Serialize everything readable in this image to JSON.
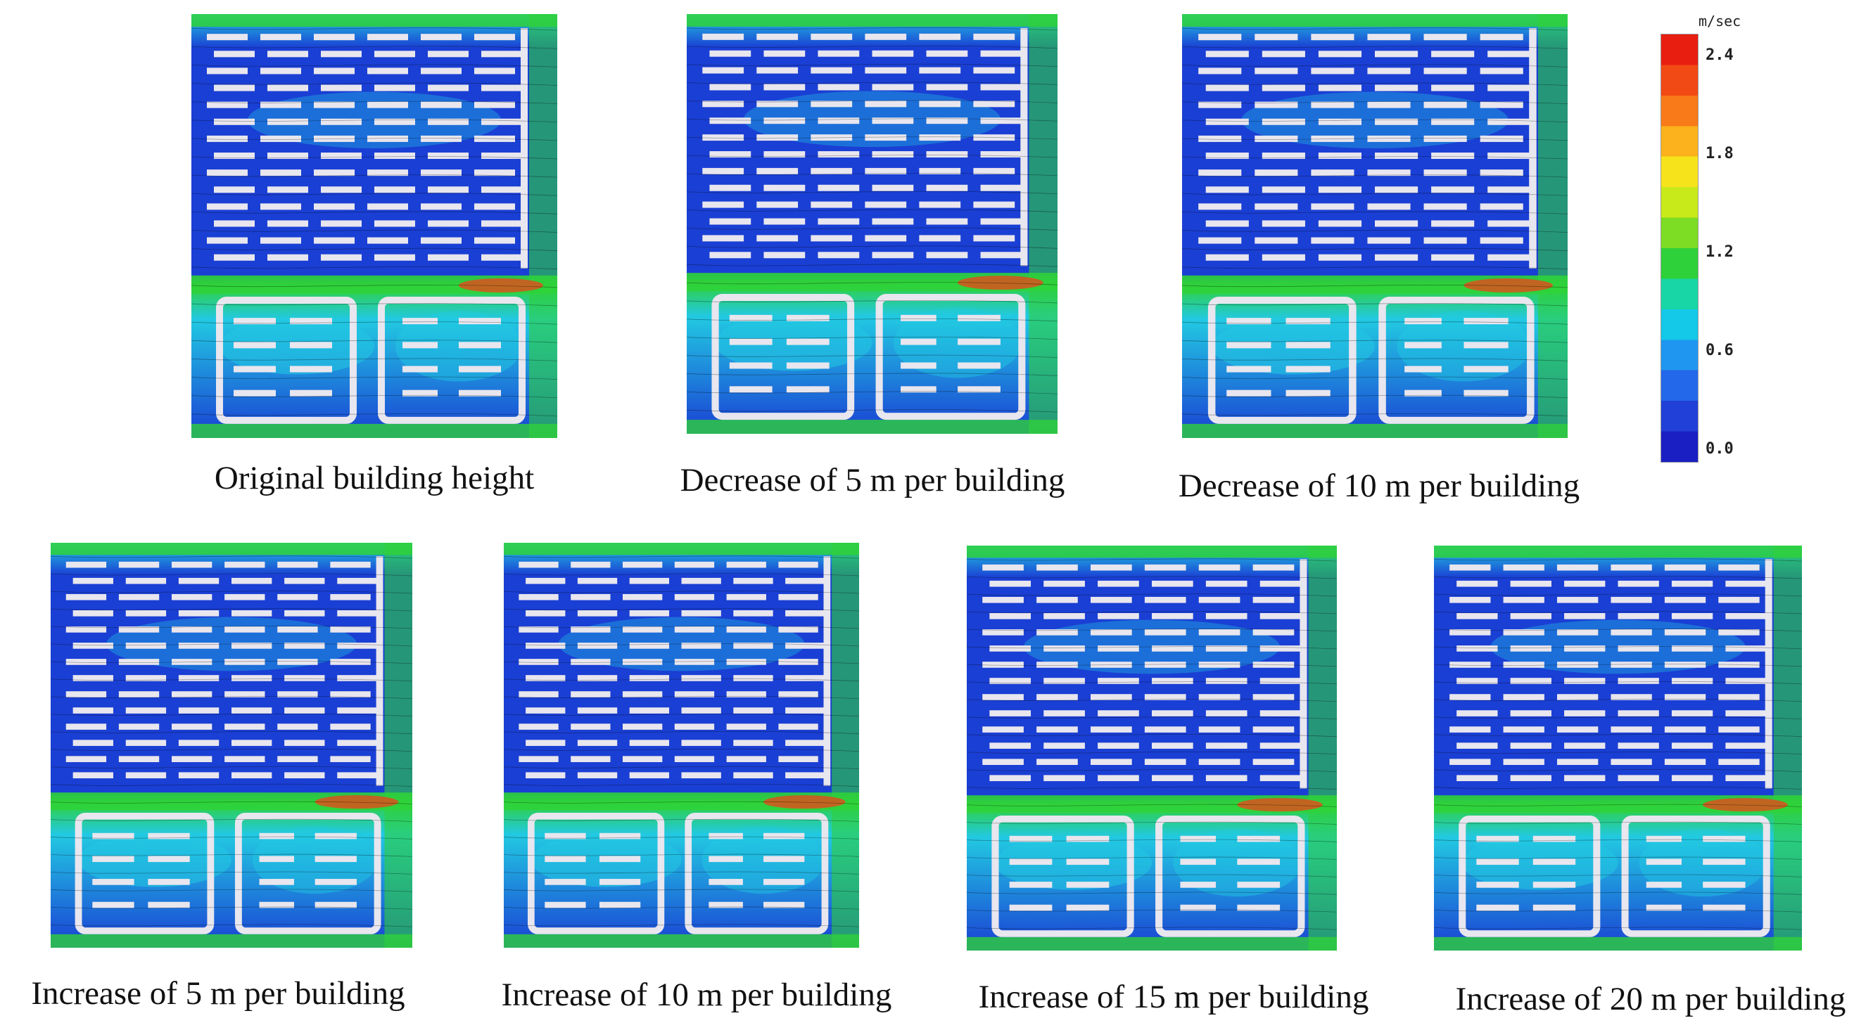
{
  "panels": [
    {
      "caption": "Original building height"
    },
    {
      "caption": "Decrease of 5 m per building"
    },
    {
      "caption": "Decrease of 10 m per building"
    },
    {
      "caption": "Increase of 5 m per building"
    },
    {
      "caption": "Increase of 10 m per building"
    },
    {
      "caption": "Increase of 15 m per building"
    },
    {
      "caption": "Increase of 20 m per building"
    }
  ],
  "legend": {
    "unit": "m/sec",
    "ticks": [
      "2.4",
      "1.8",
      "1.2",
      "0.6",
      "0.0"
    ],
    "colors": [
      "#e81e10",
      "#f24a14",
      "#f87a18",
      "#fbb21c",
      "#f6e31c",
      "#c8ea1a",
      "#7ddc24",
      "#2fd13a",
      "#18d6a5",
      "#14c8e8",
      "#1f96f0",
      "#2368ea",
      "#2140d8",
      "#1a1fc4"
    ]
  },
  "colors": {
    "low": "#1a3fd4",
    "mid": "#22c9e2",
    "high": "#2fd13a",
    "peak": "#f2401a",
    "building": "#e8e6ee"
  }
}
